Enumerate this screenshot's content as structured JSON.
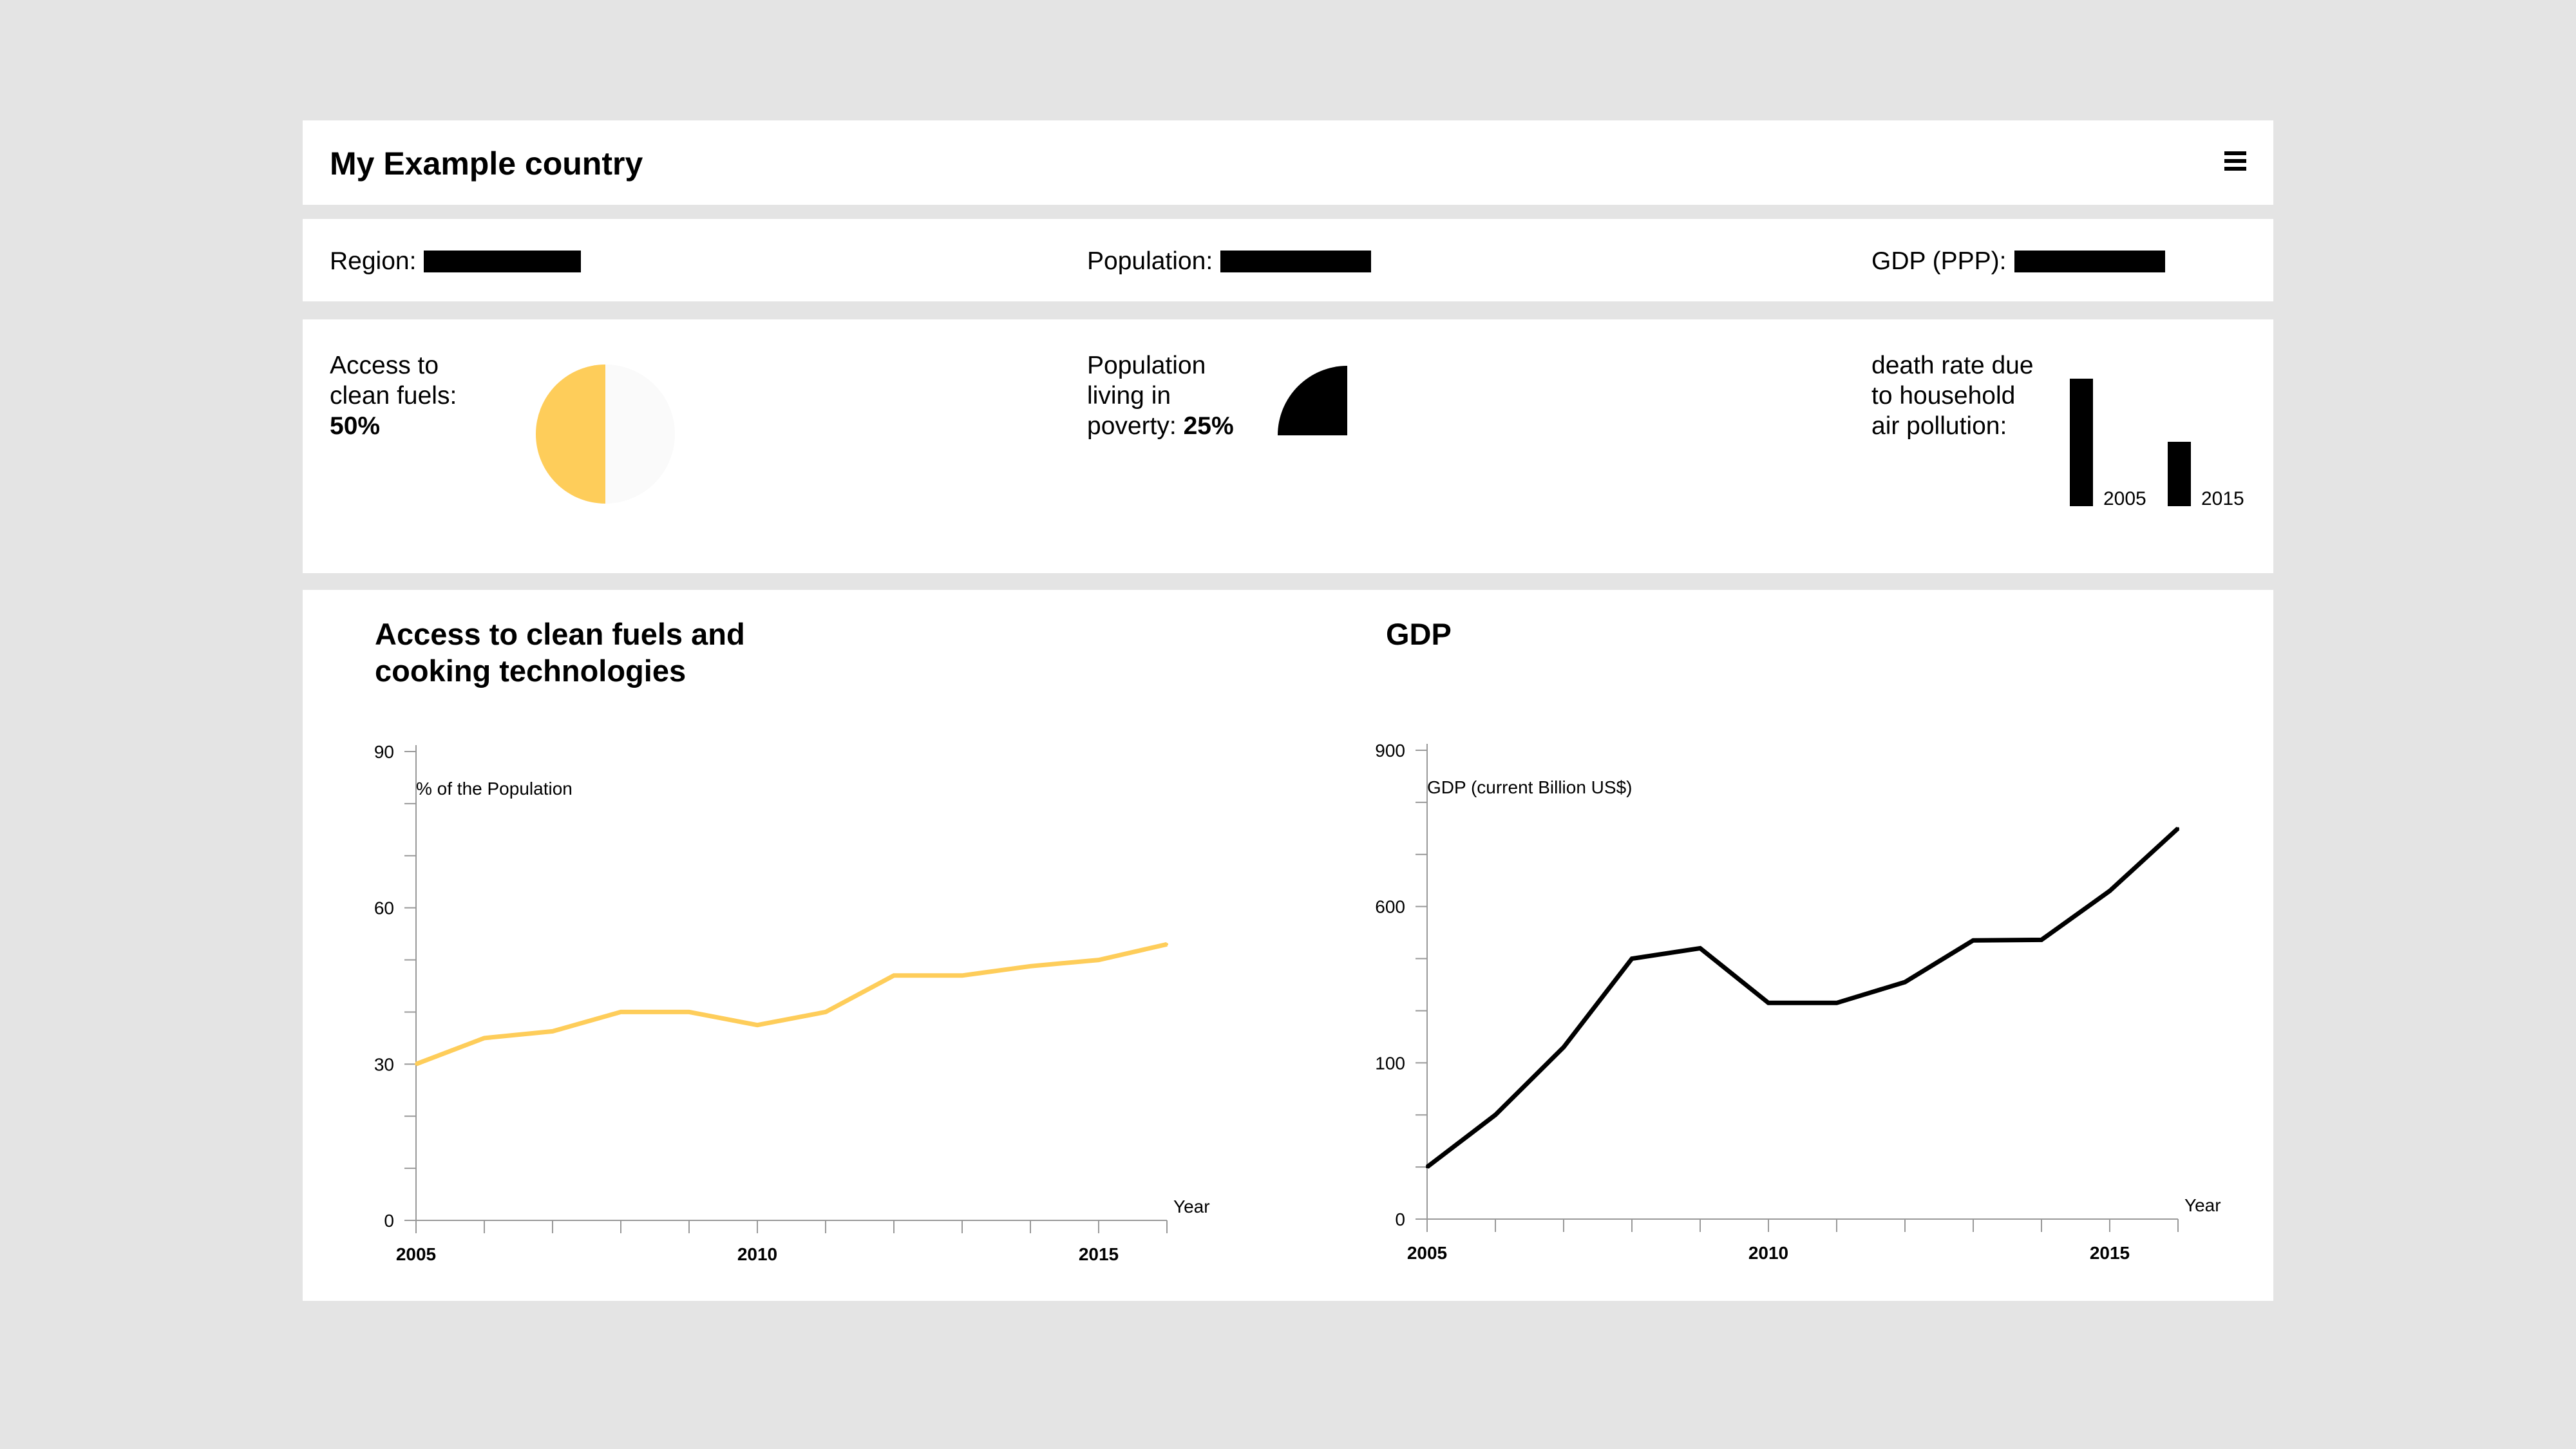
{
  "header": {
    "title": "My Example country"
  },
  "info": {
    "region_label": "Region:",
    "population_label": "Population:",
    "gdp_label": "GDP (PPP):"
  },
  "summary": {
    "fuels": {
      "line1": "Access to",
      "line2": "clean fuels:",
      "value": "50%",
      "fraction": 0.5
    },
    "poverty": {
      "line1": "Population",
      "line2": "living in",
      "line3_prefix": "poverty:",
      "value": "25%",
      "fraction": 0.25
    },
    "death": {
      "line1": "death rate due",
      "line2": "to household",
      "line3": "air pollution:",
      "bars": [
        {
          "label": "2005"
        },
        {
          "label": "2015"
        }
      ]
    }
  },
  "colors": {
    "accent": "#fecd5a",
    "ink": "#000000",
    "axis": "#999999"
  },
  "chart_data": [
    {
      "type": "line",
      "title_line1": "Access to clean fuels and",
      "title_line2": "cooking technologies",
      "ylabel": "% of the Population",
      "xlabel": "Year",
      "x": [
        2005,
        2006,
        2007,
        2008,
        2009,
        2010,
        2011,
        2012,
        2013,
        2014,
        2015,
        2016
      ],
      "values": [
        30,
        35,
        36.3,
        40,
        40,
        37.5,
        40,
        47,
        47,
        48.8,
        50,
        53
      ],
      "yticks": [
        "0",
        "30",
        "60",
        "90"
      ],
      "xticks": [
        "2005",
        "2010",
        "2015"
      ],
      "color": "#fecd5a"
    },
    {
      "type": "line",
      "title": "GDP",
      "ylabel": "GDP (current Billion US$)",
      "xlabel": "Year",
      "x": [
        2005,
        2006,
        2007,
        2008,
        2009,
        2010,
        2011,
        2012,
        2013,
        2014,
        2015,
        2016
      ],
      "values": [
        100,
        200,
        330,
        500,
        520,
        415,
        415,
        455,
        535,
        536,
        630,
        750
      ],
      "yticks": [
        "0",
        "100",
        "600",
        "900"
      ],
      "xticks": [
        "2005",
        "2010",
        "2015"
      ],
      "color": "#000000"
    }
  ]
}
